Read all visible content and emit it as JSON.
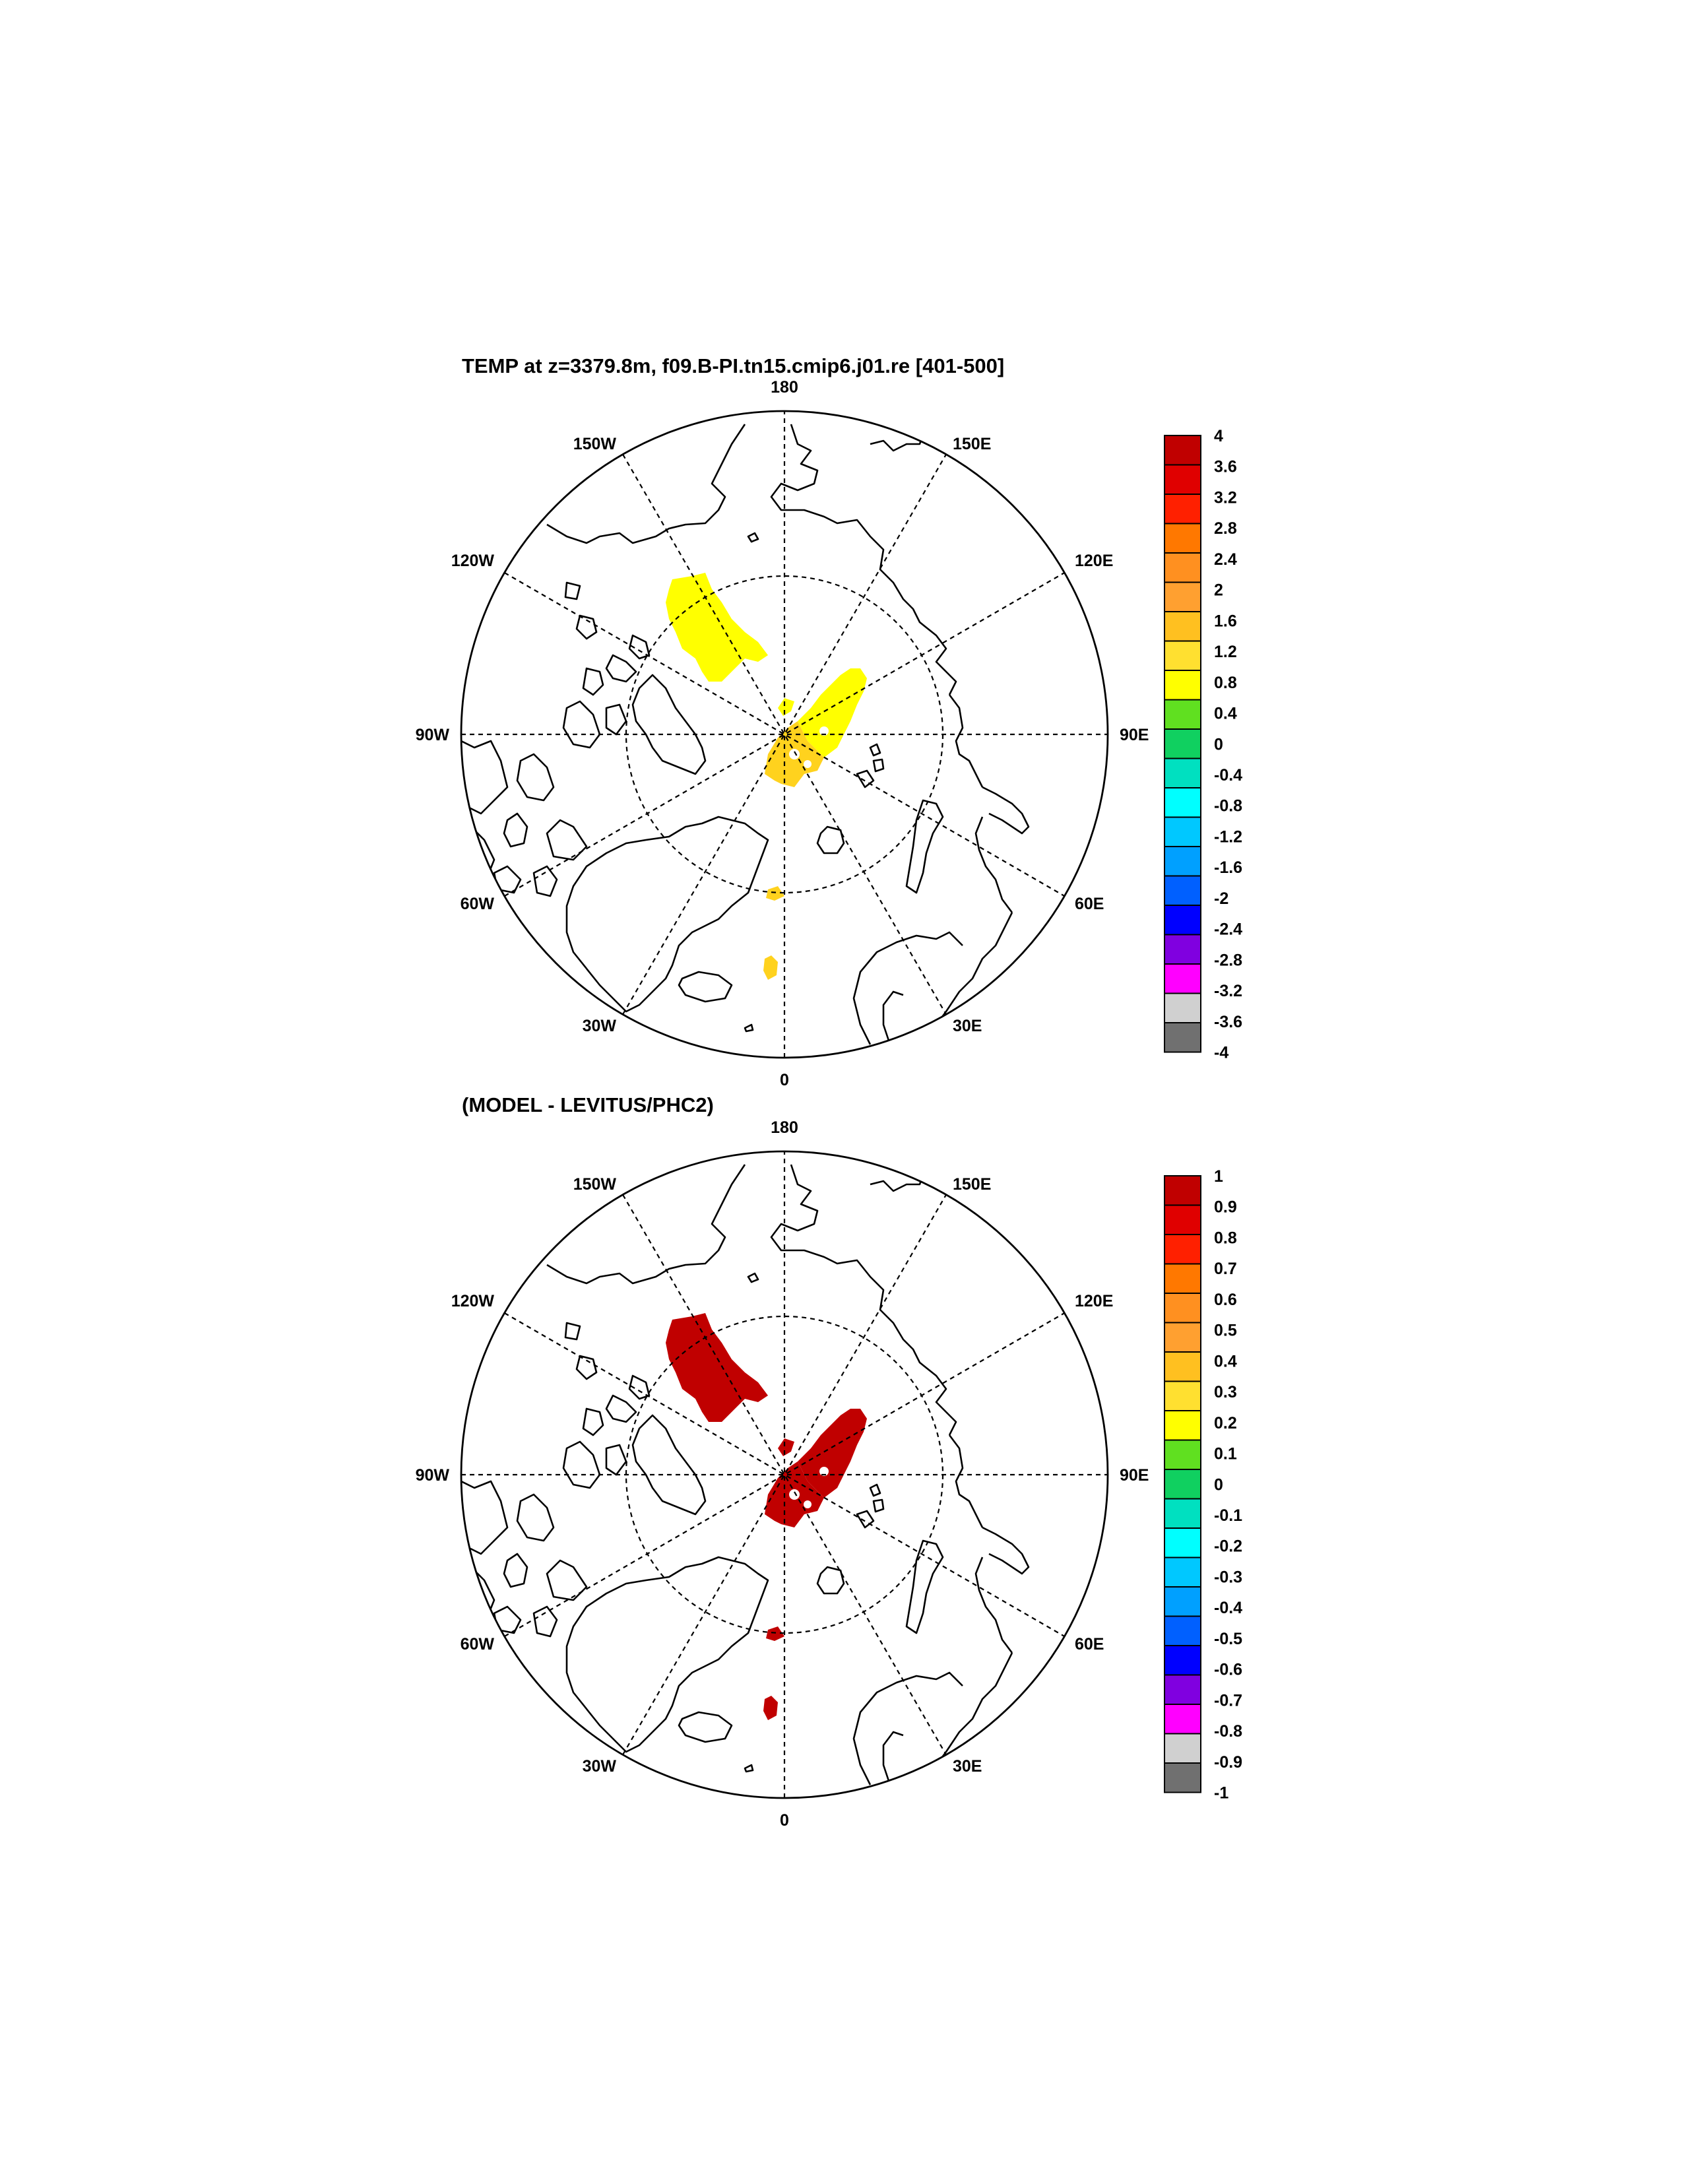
{
  "panels": [
    {
      "title": "TEMP at z=3379.8m, f09.B-PI.tn15.cmip6.j01.re [401-500]",
      "lon_labels": {
        "top": "180",
        "bottom": "0",
        "left": "90W",
        "right": "90E",
        "upper_left": "150W",
        "upper_right": "150E",
        "mid_upper_left": "120W",
        "mid_upper_right": "120E",
        "mid_lower_left": "60W",
        "mid_lower_right": "60E",
        "lower_left": "30W",
        "lower_right": "30E"
      },
      "colorbar": {
        "labels": [
          "4",
          "3.6",
          "3.2",
          "2.8",
          "2.4",
          "2",
          "1.6",
          "1.2",
          "0.8",
          "0.4",
          "0",
          "-0.4",
          "-0.8",
          "-1.2",
          "-1.6",
          "-2",
          "-2.4",
          "-2.8",
          "-3.2",
          "-3.6",
          "-4"
        ],
        "colors": [
          "#c00000",
          "#e00000",
          "#ff2000",
          "#ff7800",
          "#ff9020",
          "#ffa030",
          "#ffc020",
          "#ffe030",
          "#ffff00",
          "#60e020",
          "#10d060",
          "#00e0c0",
          "#00ffff",
          "#00c8ff",
          "#00a0ff",
          "#0060ff",
          "#0000ff",
          "#8000e0",
          "#ff00ff",
          "#d0d0d0",
          "#707070"
        ]
      },
      "fields": [
        {
          "region": "beaufort-canada-basin",
          "color": "#ffff00"
        },
        {
          "region": "lomonosov-makarov-ridge",
          "color": "#ffff00"
        },
        {
          "region": "eurasian-basin-lower",
          "color": "#ffd21e"
        },
        {
          "region": "small-west-patch",
          "color": "#ffff00"
        },
        {
          "region": "fram-strait-patch",
          "color": "#ffd21e"
        },
        {
          "region": "greenland-sea-patch",
          "color": "#ffd21e"
        }
      ]
    },
    {
      "title": "(MODEL - LEVITUS/PHC2)",
      "lon_labels": {
        "top": "180",
        "bottom": "0",
        "left": "90W",
        "right": "90E",
        "upper_left": "150W",
        "upper_right": "150E",
        "mid_upper_left": "120W",
        "mid_upper_right": "120E",
        "mid_lower_left": "60W",
        "mid_lower_right": "60E",
        "lower_left": "30W",
        "lower_right": "30E"
      },
      "colorbar": {
        "labels": [
          "1",
          "0.9",
          "0.8",
          "0.7",
          "0.6",
          "0.5",
          "0.4",
          "0.3",
          "0.2",
          "0.1",
          "0",
          "-0.1",
          "-0.2",
          "-0.3",
          "-0.4",
          "-0.5",
          "-0.6",
          "-0.7",
          "-0.8",
          "-0.9",
          "-1"
        ],
        "colors": [
          "#c00000",
          "#e00000",
          "#ff2000",
          "#ff7800",
          "#ff9020",
          "#ffa030",
          "#ffc020",
          "#ffe030",
          "#ffff00",
          "#60e020",
          "#10d060",
          "#00e0c0",
          "#00ffff",
          "#00c8ff",
          "#00a0ff",
          "#0060ff",
          "#0000ff",
          "#8000e0",
          "#ff00ff",
          "#d0d0d0",
          "#707070"
        ]
      },
      "fields": [
        {
          "region": "beaufort-canada-basin",
          "color": "#c00000"
        },
        {
          "region": "lomonosov-makarov-ridge",
          "color": "#c00000"
        },
        {
          "region": "eurasian-basin-lower",
          "color": "#c00000"
        },
        {
          "region": "small-west-patch",
          "color": "#c00000"
        },
        {
          "region": "fram-strait-patch",
          "color": "#c00000"
        },
        {
          "region": "greenland-sea-patch",
          "color": "#c00000"
        }
      ]
    }
  ]
}
